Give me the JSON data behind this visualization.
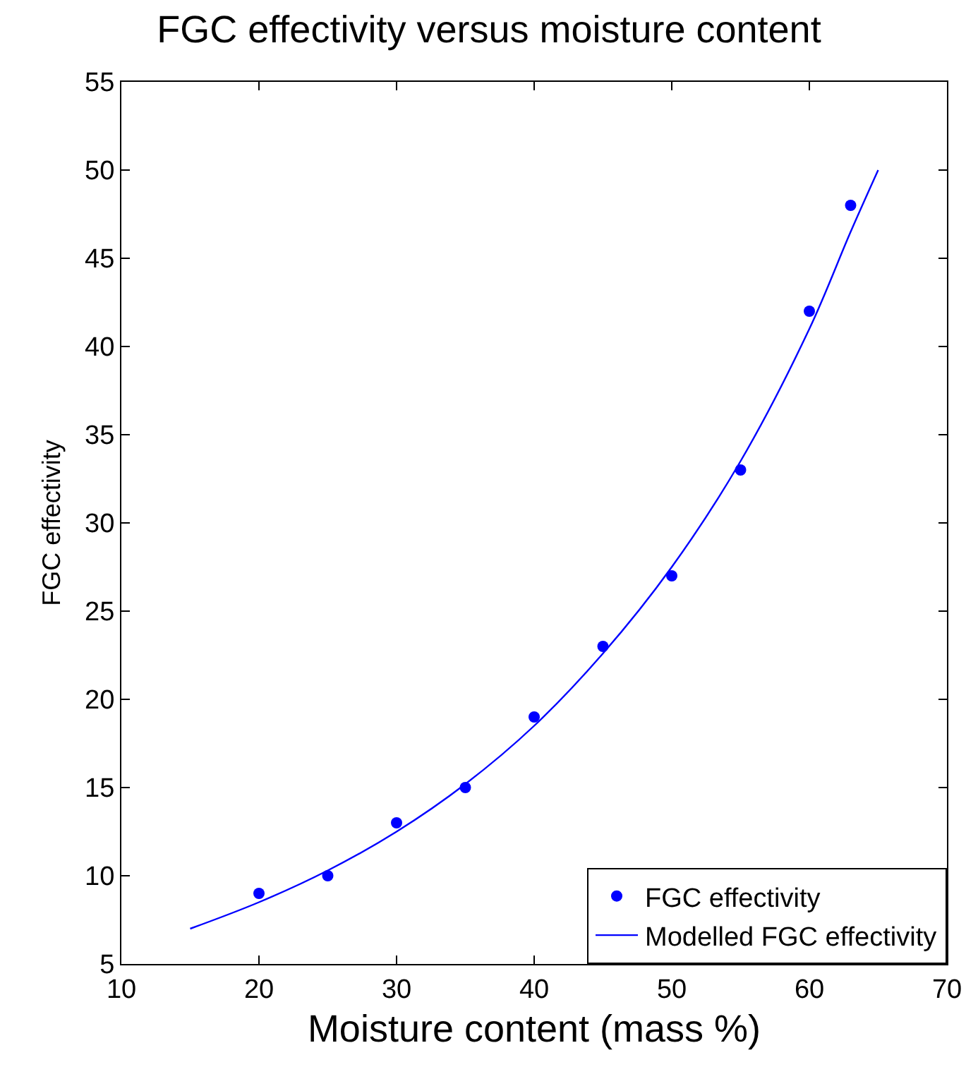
{
  "chart_data": {
    "type": "scatter",
    "title": "FGC effectivity versus moisture content",
    "xlabel": "Moisture content (mass %)",
    "ylabel": "FGC effectivity",
    "xlim": [
      10,
      70
    ],
    "ylim": [
      5,
      55
    ],
    "xticks": [
      10,
      20,
      30,
      40,
      50,
      60,
      70
    ],
    "yticks": [
      5,
      10,
      15,
      20,
      25,
      30,
      35,
      40,
      45,
      50,
      55
    ],
    "legend": "bottom right",
    "series": [
      {
        "name": "FGC effectivity",
        "marker": "circle",
        "color": "#0000ff",
        "x": [
          20,
          25,
          30,
          35,
          40,
          45,
          50,
          55,
          60,
          63
        ],
        "values": [
          9,
          10,
          13,
          15,
          19,
          23,
          27,
          33,
          42,
          48
        ]
      },
      {
        "name": "Modelled FGC effectivity",
        "type": "line",
        "marker": "none",
        "line_style": "solid",
        "color": "#0000ff",
        "x": [
          15,
          20,
          25,
          30,
          35,
          40,
          45,
          50,
          55,
          60,
          63,
          65
        ],
        "values": [
          7,
          8.5,
          10.3,
          12.5,
          15.2,
          18.5,
          22.6,
          27.5,
          33.5,
          41,
          46.5,
          50
        ]
      }
    ]
  }
}
